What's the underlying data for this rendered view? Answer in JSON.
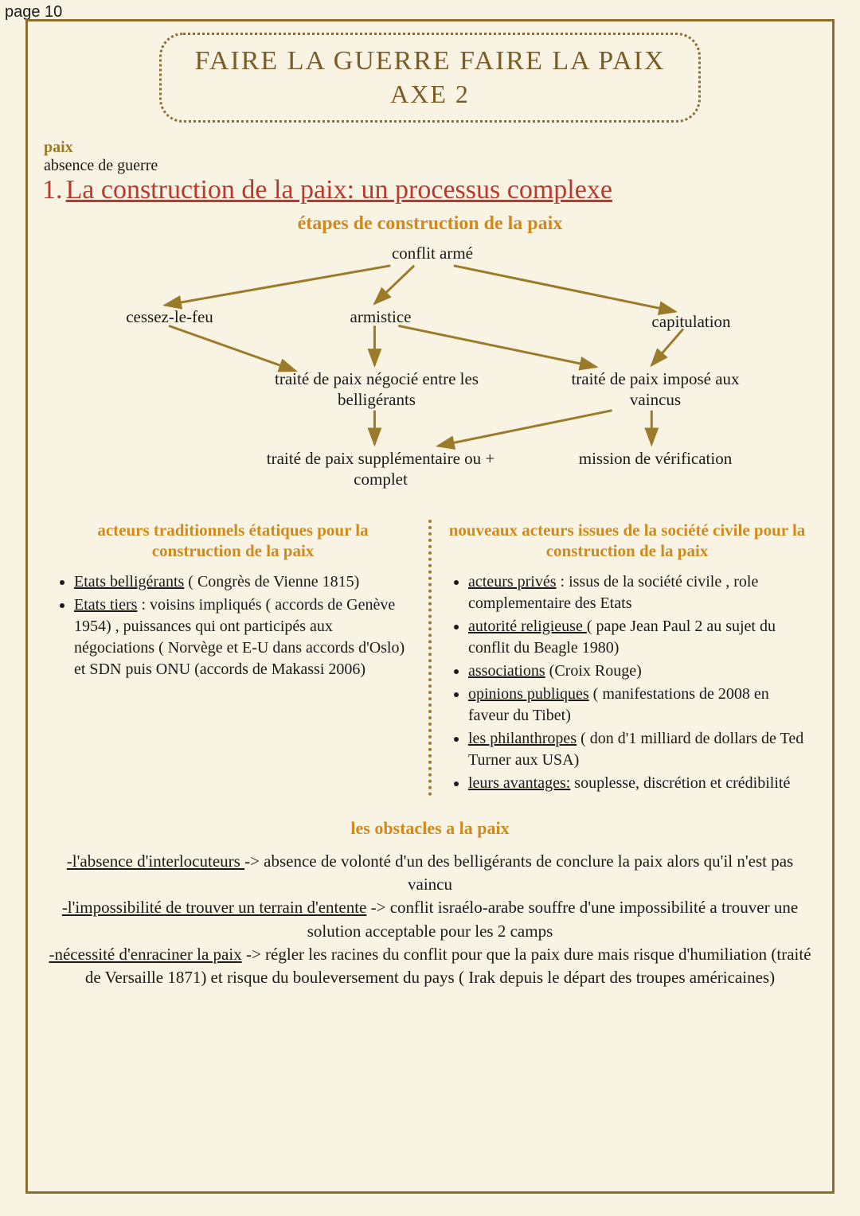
{
  "page_label": "page 10",
  "title": {
    "line1": "FAIRE LA GUERRE FAIRE LA PAIX",
    "line2": "AXE 2"
  },
  "definition": {
    "term": "paix",
    "text": "absence de guerre"
  },
  "section1": {
    "number": "1.",
    "title": "La construction de la paix: un processus complexe"
  },
  "steps_title": "étapes de construction de la paix",
  "diagram": {
    "nodes": {
      "root": "conflit armé",
      "n1": "cessez-le-feu",
      "n2": "armistice",
      "n3": "capitulation",
      "n4": "traité de paix négocié entre les belligérants",
      "n5": "traité de paix imposé aux vaincus",
      "n6": "traité de paix supplémentaire ou + complet",
      "n7": "mission de vérification"
    },
    "arrow_color": "#9b7b2a",
    "arrow_width": 3
  },
  "columns": {
    "left": {
      "title": "acteurs traditionnels étatiques pour la construction de la paix",
      "items": [
        {
          "u": "Etats belligérants",
          "rest": " ( Congrès de Vienne 1815)"
        },
        {
          "u": "Etats tiers",
          "rest": " : voisins impliqués ( accords de Genève 1954) , puissances qui ont participés aux négociations ( Norvège et E-U dans accords d'Oslo) et SDN puis ONU (accords de Makassi 2006)"
        }
      ]
    },
    "right": {
      "title": "nouveaux acteurs issues de la société civile pour la construction de la paix",
      "items": [
        {
          "u": "acteurs privés",
          "rest": " : issus de la société civile , role complementaire des Etats"
        },
        {
          "u": "autorité religieuse ",
          "rest": "( pape Jean Paul 2 au sujet du conflit du Beagle 1980)"
        },
        {
          "u": "associations",
          "rest": " (Croix Rouge)"
        },
        {
          "u": "opinions publiques",
          "rest": " ( manifestations de 2008 en faveur du Tibet)"
        },
        {
          "u": "les philanthropes",
          "rest": " ( don d'1 milliard de dollars de Ted Turner aux USA)"
        },
        {
          "u": "leurs avantages:",
          "rest": " souplesse, discrétion et crédibilité"
        }
      ]
    }
  },
  "obstacles": {
    "title": "les obstacles a la paix",
    "lines": [
      {
        "u": "-l'absence d'interlocuteurs ",
        "rest": "-> absence de volonté d'un des belligérants de conclure la paix alors qu'il n'est pas vaincu"
      },
      {
        "u": "-l'impossibilité de trouver un terrain d'entente",
        "rest": " -> conflit israélo-arabe souffre d'une impossibilité a trouver une solution acceptable pour les 2 camps"
      },
      {
        "u": "-nécessité d'enraciner la paix",
        "rest": " -> régler les racines du conflit pour que la paix dure mais risque d'humiliation (traité de Versaille 1871) et risque du bouleversement du pays ( Irak depuis le départ des troupes américaines)"
      }
    ]
  },
  "colors": {
    "background": "#f9f3e3",
    "border": "#8a6d2f",
    "title": "#7a5c27",
    "accent": "#cf8a1d",
    "heading": "#b83a2e",
    "text": "#1a1a1a"
  }
}
